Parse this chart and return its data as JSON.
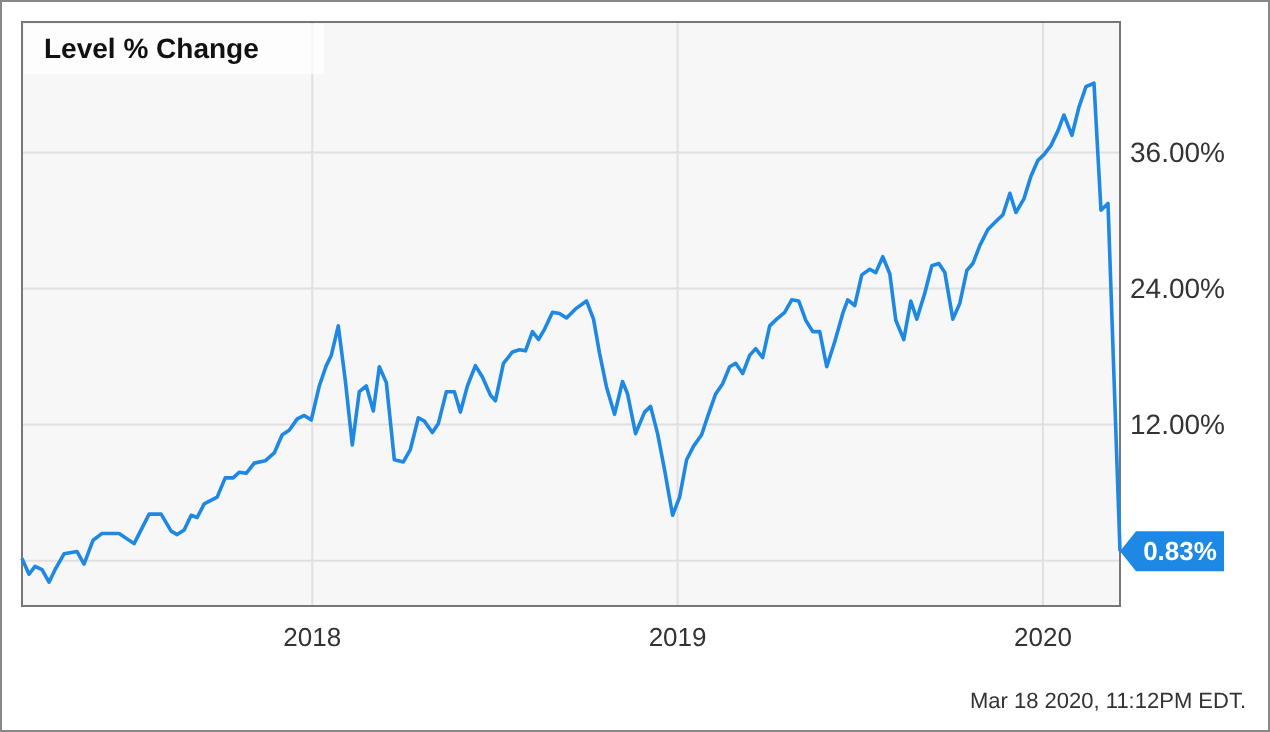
{
  "chart_data": {
    "type": "line",
    "title": "Level % Change",
    "x": [
      "2017-03-17",
      "2017-03-24",
      "2017-03-30",
      "2017-04-06",
      "2017-04-13",
      "2017-04-19",
      "2017-04-28",
      "2017-05-11",
      "2017-05-18",
      "2017-05-27",
      "2017-06-05",
      "2017-06-22",
      "2017-07-07",
      "2017-07-22",
      "2017-08-03",
      "2017-08-13",
      "2017-08-19",
      "2017-08-26",
      "2017-09-02",
      "2017-09-08",
      "2017-09-15",
      "2017-09-28",
      "2017-10-06",
      "2017-10-14",
      "2017-10-20",
      "2017-10-27",
      "2017-11-04",
      "2017-11-15",
      "2017-11-24",
      "2017-12-02",
      "2017-12-09",
      "2017-12-17",
      "2017-12-24",
      "2017-12-31",
      "2018-01-08",
      "2018-01-15",
      "2018-01-20",
      "2018-01-27",
      "2018-02-03",
      "2018-02-10",
      "2018-02-17",
      "2018-02-24",
      "2018-03-03",
      "2018-03-09",
      "2018-03-16",
      "2018-03-24",
      "2018-04-02",
      "2018-04-09",
      "2018-04-17",
      "2018-04-23",
      "2018-05-01",
      "2018-05-07",
      "2018-05-15",
      "2018-05-23",
      "2018-05-29",
      "2018-06-05",
      "2018-06-13",
      "2018-06-20",
      "2018-06-28",
      "2018-07-03",
      "2018-07-11",
      "2018-07-20",
      "2018-07-27",
      "2018-08-02",
      "2018-08-09",
      "2018-08-15",
      "2018-08-21",
      "2018-08-29",
      "2018-09-05",
      "2018-09-12",
      "2018-09-21",
      "2018-10-02",
      "2018-10-09",
      "2018-10-15",
      "2018-10-22",
      "2018-10-30",
      "2018-11-07",
      "2018-11-12",
      "2018-11-20",
      "2018-11-29",
      "2018-12-05",
      "2018-12-12",
      "2018-12-19",
      "2018-12-27",
      "2019-01-03",
      "2019-01-10",
      "2019-01-17",
      "2019-01-25",
      "2019-01-31",
      "2019-02-08",
      "2019-02-15",
      "2019-02-22",
      "2019-02-28",
      "2019-03-07",
      "2019-03-14",
      "2019-03-20",
      "2019-03-27",
      "2019-04-03",
      "2019-04-10",
      "2019-04-18",
      "2019-04-25",
      "2019-05-02",
      "2019-05-09",
      "2019-05-16",
      "2019-05-23",
      "2019-05-30",
      "2019-06-07",
      "2019-06-15",
      "2019-06-20",
      "2019-06-27",
      "2019-07-04",
      "2019-07-12",
      "2019-07-18",
      "2019-07-25",
      "2019-08-01",
      "2019-08-07",
      "2019-08-15",
      "2019-08-22",
      "2019-08-28",
      "2019-09-05",
      "2019-09-12",
      "2019-09-19",
      "2019-09-25",
      "2019-10-03",
      "2019-10-10",
      "2019-10-17",
      "2019-10-23",
      "2019-10-30",
      "2019-11-07",
      "2019-11-15",
      "2019-11-22",
      "2019-11-29",
      "2019-12-05",
      "2019-12-13",
      "2019-12-20",
      "2019-12-27",
      "2020-01-02",
      "2020-01-09",
      "2020-01-16",
      "2020-01-22",
      "2020-01-30",
      "2020-02-06",
      "2020-02-13",
      "2020-02-21",
      "2020-02-28",
      "2020-03-06",
      "2020-03-18"
    ],
    "series": [
      {
        "color": "#1e88e5",
        "values": [
          0.2,
          -1.2,
          -0.5,
          -0.8,
          -1.9,
          -0.8,
          0.6,
          0.8,
          -0.3,
          1.8,
          2.4,
          2.4,
          1.5,
          4.1,
          4.1,
          2.6,
          2.3,
          2.7,
          4.0,
          3.8,
          5.0,
          5.6,
          7.3,
          7.3,
          7.8,
          7.7,
          8.6,
          8.8,
          9.5,
          11.1,
          11.5,
          12.5,
          12.8,
          12.4,
          15.4,
          17.2,
          18.1,
          20.7,
          15.9,
          10.2,
          14.9,
          15.4,
          13.2,
          17.1,
          15.7,
          8.9,
          8.7,
          9.8,
          12.6,
          12.3,
          11.3,
          12.1,
          14.9,
          14.9,
          13.1,
          15.4,
          17.2,
          16.2,
          14.6,
          14.1,
          17.4,
          18.4,
          18.6,
          18.5,
          20.2,
          19.5,
          20.4,
          21.9,
          21.8,
          21.4,
          22.2,
          22.9,
          21.3,
          18.3,
          15.3,
          12.9,
          15.8,
          14.7,
          11.2,
          13.1,
          13.6,
          11.2,
          8.0,
          4.0,
          5.6,
          8.9,
          10.1,
          11.1,
          12.7,
          14.7,
          15.6,
          17.1,
          17.4,
          16.5,
          18.1,
          18.7,
          17.9,
          20.7,
          21.3,
          21.9,
          23.0,
          22.9,
          21.2,
          20.2,
          20.2,
          17.1,
          19.3,
          21.8,
          23.0,
          22.5,
          25.2,
          25.7,
          25.4,
          26.8,
          25.3,
          21.2,
          19.5,
          22.9,
          21.3,
          23.6,
          26.0,
          26.2,
          25.4,
          21.3,
          22.7,
          25.6,
          26.2,
          27.8,
          29.2,
          29.9,
          30.5,
          32.4,
          30.7,
          31.9,
          33.9,
          35.3,
          35.8,
          36.6,
          37.9,
          39.3,
          37.5,
          40.0,
          41.8,
          42.1,
          30.9,
          31.5,
          0.83
        ]
      }
    ],
    "xlim": [
      "2017-03-17",
      "2020-03-18"
    ],
    "xticks": [
      {
        "value": "2018-01-01",
        "label": "2018"
      },
      {
        "value": "2019-01-01",
        "label": "2019"
      },
      {
        "value": "2020-01-01",
        "label": "2020"
      }
    ],
    "ylim": [
      -4,
      47.5
    ],
    "yticks": [
      {
        "value": 0,
        "label": null
      },
      {
        "value": 12,
        "label": "12.00%"
      },
      {
        "value": 24,
        "label": "24.00%"
      },
      {
        "value": 36,
        "label": "36.00%"
      }
    ],
    "grid": true,
    "marker": "none",
    "line_style": "solid",
    "annotations": [
      {
        "text": "0.83%",
        "x": "2020-03-18",
        "y": 0.83
      },
      "Mar 18 2020, 11:12PM EDT."
    ]
  }
}
